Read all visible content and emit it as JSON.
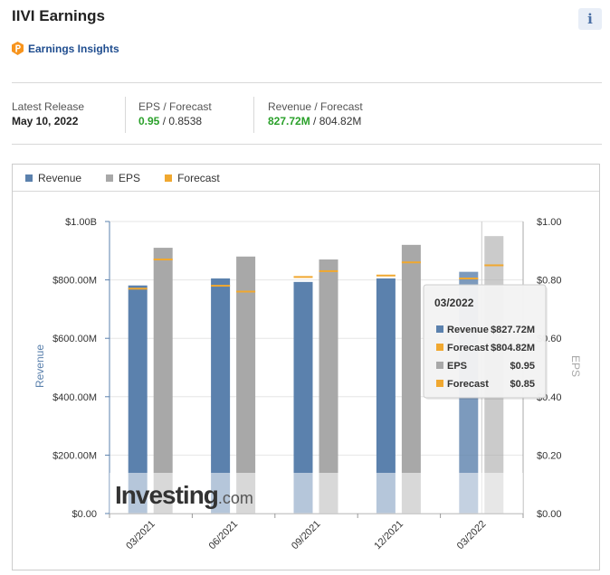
{
  "header": {
    "title": "IIVI Earnings",
    "info_icon": "i",
    "insights_label": "Earnings Insights"
  },
  "stats": {
    "latest_release_label": "Latest Release",
    "latest_release_value": "May 10, 2022",
    "eps_label": "EPS / Forecast",
    "eps_actual": "0.95",
    "eps_forecast": " / 0.8538",
    "revenue_label": "Revenue / Forecast",
    "revenue_actual": "827.72M",
    "revenue_forecast": " / 804.82M"
  },
  "colors": {
    "revenue": "#5b81ad",
    "eps": "#a8a8a8",
    "forecast": "#f0a830",
    "green": "#2aa02a"
  },
  "legend": {
    "revenue": "Revenue",
    "eps": "EPS",
    "forecast": "Forecast"
  },
  "watermark": {
    "brand": "Investing",
    "suffix": ".com"
  },
  "tooltip": {
    "title": "03/2022",
    "rows": [
      {
        "label": "Revenue",
        "value": "$827.72M",
        "color": "#5b81ad"
      },
      {
        "label": "Forecast",
        "value": "$804.82M",
        "color": "#f0a830"
      },
      {
        "label": "EPS",
        "value": "$0.95",
        "color": "#a8a8a8"
      },
      {
        "label": "Forecast",
        "value": "$0.85",
        "color": "#f0a830"
      }
    ]
  },
  "chart_data": {
    "type": "bar",
    "categories": [
      "03/2021",
      "06/2021",
      "09/2021",
      "12/2021",
      "03/2022"
    ],
    "series": [
      {
        "name": "Revenue",
        "axis": "left",
        "unit": "M",
        "values": [
          781,
          805,
          793,
          805,
          827.72
        ]
      },
      {
        "name": "Revenue Forecast",
        "axis": "left",
        "unit": "M",
        "values": [
          770,
          780,
          810,
          815,
          804.82
        ]
      },
      {
        "name": "EPS",
        "axis": "right",
        "values": [
          0.91,
          0.88,
          0.87,
          0.92,
          0.95
        ]
      },
      {
        "name": "EPS Forecast",
        "axis": "right",
        "values": [
          0.87,
          0.76,
          0.83,
          0.86,
          0.85
        ]
      }
    ],
    "y_left": {
      "label": "Revenue",
      "min": 0,
      "max": 1000,
      "ticks": [
        "$0.00",
        "$200.00M",
        "$400.00M",
        "$600.00M",
        "$800.00M",
        "$1.00B"
      ]
    },
    "y_right": {
      "label": "EPS",
      "min": 0,
      "max": 1,
      "ticks": [
        "$0.00",
        "$0.20",
        "$0.40",
        "$0.60",
        "$0.80",
        "$1.00"
      ]
    },
    "highlighted_category": "03/2022"
  }
}
